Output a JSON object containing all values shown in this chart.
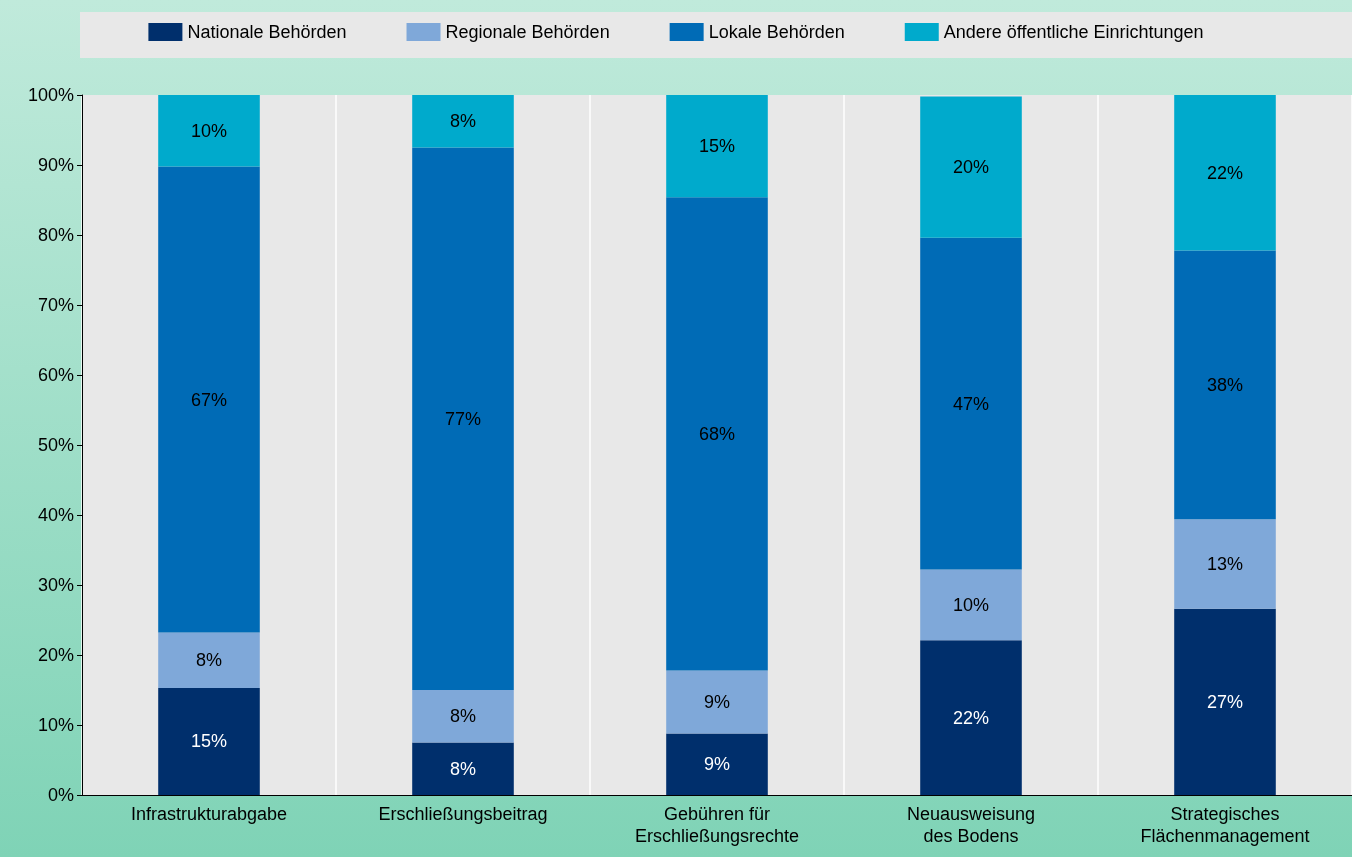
{
  "chart_data": {
    "type": "bar",
    "stacked": true,
    "categories": [
      "Infrastrukturabgabe",
      "Erschließungsbeitrag",
      "Gebühren für\nErschließungsrechte",
      "Neuausweisung\ndes Bodens",
      "Strategisches\nFlächenmanagement"
    ],
    "series": [
      {
        "name": "Nationale Behörden",
        "color": "#002f6c",
        "values": [
          15.3,
          7.5,
          8.8,
          22.1,
          26.6
        ],
        "value_labels": [
          "15%",
          "8%",
          "9%",
          "22%",
          "27%"
        ]
      },
      {
        "name": "Regionale Behörden",
        "color": "#7fa8d9",
        "values": [
          7.9,
          7.5,
          9.0,
          10.1,
          12.8
        ],
        "value_labels": [
          "8%",
          "8%",
          "9%",
          "10%",
          "13%"
        ]
      },
      {
        "name": "Lokale Behörden",
        "color": "#006bb6",
        "values": [
          66.6,
          77.5,
          67.6,
          47.4,
          38.4
        ],
        "value_labels": [
          "67%",
          "77%",
          "68%",
          "47%",
          "38%"
        ]
      },
      {
        "name": "Andere öffentliche Einrichtungen",
        "color": "#00aacc",
        "values": [
          10.2,
          7.5,
          14.6,
          20.2,
          22.3
        ],
        "value_labels": [
          "10%",
          "8%",
          "15%",
          "20%",
          "22%"
        ]
      }
    ],
    "ylim": [
      0,
      100
    ],
    "yticks": [
      {
        "value": 0,
        "label": "0%"
      },
      {
        "value": 10,
        "label": "10%"
      },
      {
        "value": 20,
        "label": "20%"
      },
      {
        "value": 30,
        "label": "30%"
      },
      {
        "value": 40,
        "label": "40%"
      },
      {
        "value": 50,
        "label": "50%"
      },
      {
        "value": 60,
        "label": "60%"
      },
      {
        "value": 70,
        "label": "70%"
      },
      {
        "value": 80,
        "label": "80%"
      },
      {
        "value": 90,
        "label": "90%"
      },
      {
        "value": 100,
        "label": "100%"
      }
    ],
    "grid": "x",
    "legend": "top"
  }
}
